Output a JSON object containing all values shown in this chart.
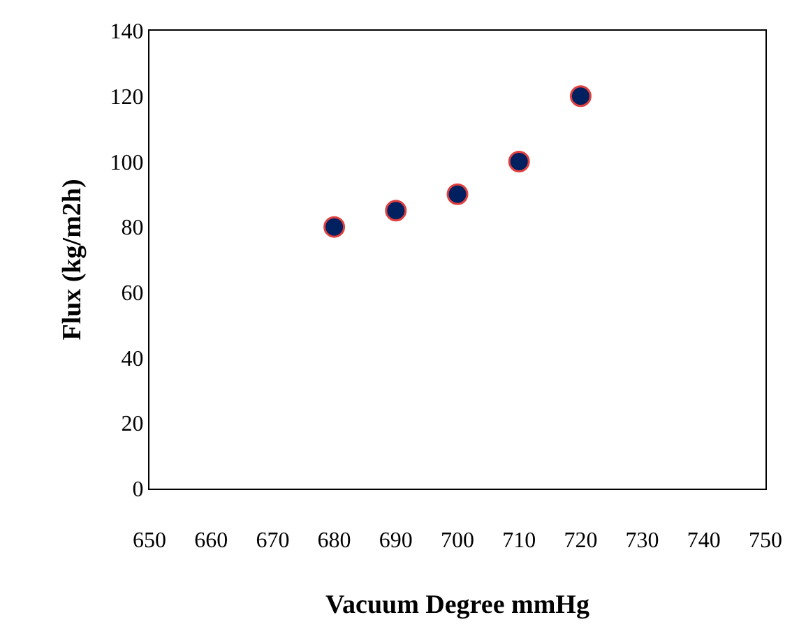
{
  "chart_data": {
    "type": "scatter",
    "xlabel": "Vacuum Degree mmHg",
    "ylabel": "Flux (kg/m2h)",
    "x": [
      680,
      690,
      700,
      710,
      720
    ],
    "series": [
      {
        "color": "#002060",
        "values": [
          80,
          85,
          90,
          100,
          120
        ]
      }
    ],
    "xlim": [
      650,
      750
    ],
    "xticks": [
      650,
      660,
      670,
      680,
      690,
      700,
      710,
      720,
      730,
      740,
      750
    ],
    "ylim": [
      0,
      140
    ],
    "yticks": [
      0,
      20,
      40,
      60,
      80,
      100,
      120,
      140
    ],
    "legend": false,
    "marker": "circle"
  }
}
